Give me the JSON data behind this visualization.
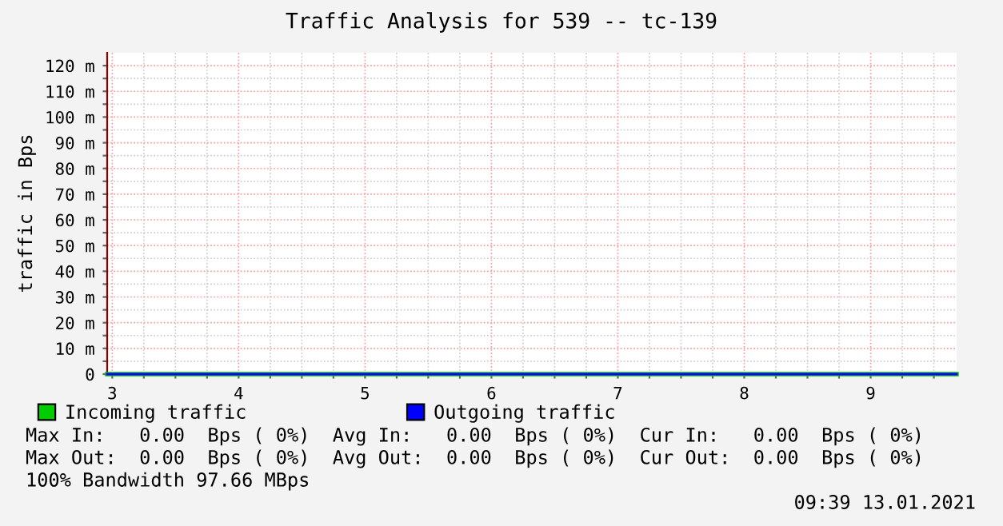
{
  "chart_data": {
    "type": "line",
    "title": "Traffic Analysis for 539 -- tc-139",
    "ylabel": "traffic in Bps",
    "x": [
      2.96,
      9.68
    ],
    "series": [
      {
        "name": "Incoming traffic",
        "color": "#00cc00",
        "values": [
          0,
          0
        ]
      },
      {
        "name": "Outgoing traffic",
        "color": "#0000ff",
        "values": [
          0,
          0
        ]
      }
    ],
    "xlim": [
      2.96,
      9.68
    ],
    "xticks": [
      3,
      {
        "value": 3.25,
        "label": null
      },
      {
        "value": 3.5,
        "label": null
      },
      {
        "value": 3.75,
        "label": null
      },
      4,
      {
        "value": 4.25,
        "label": null
      },
      {
        "value": 4.5,
        "label": null
      },
      {
        "value": 4.75,
        "label": null
      },
      5,
      {
        "value": 5.25,
        "label": null
      },
      {
        "value": 5.5,
        "label": null
      },
      {
        "value": 5.75,
        "label": null
      },
      6,
      {
        "value": 6.25,
        "label": null
      },
      {
        "value": 6.5,
        "label": null
      },
      {
        "value": 6.75,
        "label": null
      },
      7,
      {
        "value": 7.25,
        "label": null
      },
      {
        "value": 7.5,
        "label": null
      },
      {
        "value": 7.75,
        "label": null
      },
      8,
      {
        "value": 8.25,
        "label": null
      },
      {
        "value": 8.5,
        "label": null
      },
      {
        "value": 8.75,
        "label": null
      },
      9,
      {
        "value": 9.25,
        "label": null
      },
      {
        "value": 9.5,
        "label": null
      }
    ],
    "ylim": [
      0,
      125
    ],
    "yticks": [
      0,
      {
        "value": 5,
        "label": null
      },
      {
        "value": 10,
        "label": "10 m"
      },
      {
        "value": 15,
        "label": null
      },
      {
        "value": 20,
        "label": "20 m"
      },
      {
        "value": 25,
        "label": null
      },
      {
        "value": 30,
        "label": "30 m"
      },
      {
        "value": 35,
        "label": null
      },
      {
        "value": 40,
        "label": "40 m"
      },
      {
        "value": 45,
        "label": null
      },
      {
        "value": 50,
        "label": "50 m"
      },
      {
        "value": 55,
        "label": null
      },
      {
        "value": 60,
        "label": "60 m"
      },
      {
        "value": 65,
        "label": null
      },
      {
        "value": 70,
        "label": "70 m"
      },
      {
        "value": 75,
        "label": null
      },
      {
        "value": 80,
        "label": "80 m"
      },
      {
        "value": 85,
        "label": null
      },
      {
        "value": 90,
        "label": "90 m"
      },
      {
        "value": 95,
        "label": null
      },
      {
        "value": 100,
        "label": "100 m"
      },
      {
        "value": 105,
        "label": null
      },
      {
        "value": 110,
        "label": "110 m"
      },
      {
        "value": 115,
        "label": null
      },
      {
        "value": 120,
        "label": "120 m"
      }
    ],
    "grid": true,
    "legend": "bottom",
    "annotations": [
      "Max In:   0.00  Bps ( 0%)  Avg In:   0.00  Bps ( 0%)  Cur In:   0.00  Bps ( 0%)",
      "Max Out:  0.00  Bps ( 0%)  Avg Out:  0.00  Bps ( 0%)  Cur Out:  0.00  Bps ( 0%)",
      "100% Bandwidth 97.66 MBps",
      "09:39 13.01.2021"
    ]
  }
}
